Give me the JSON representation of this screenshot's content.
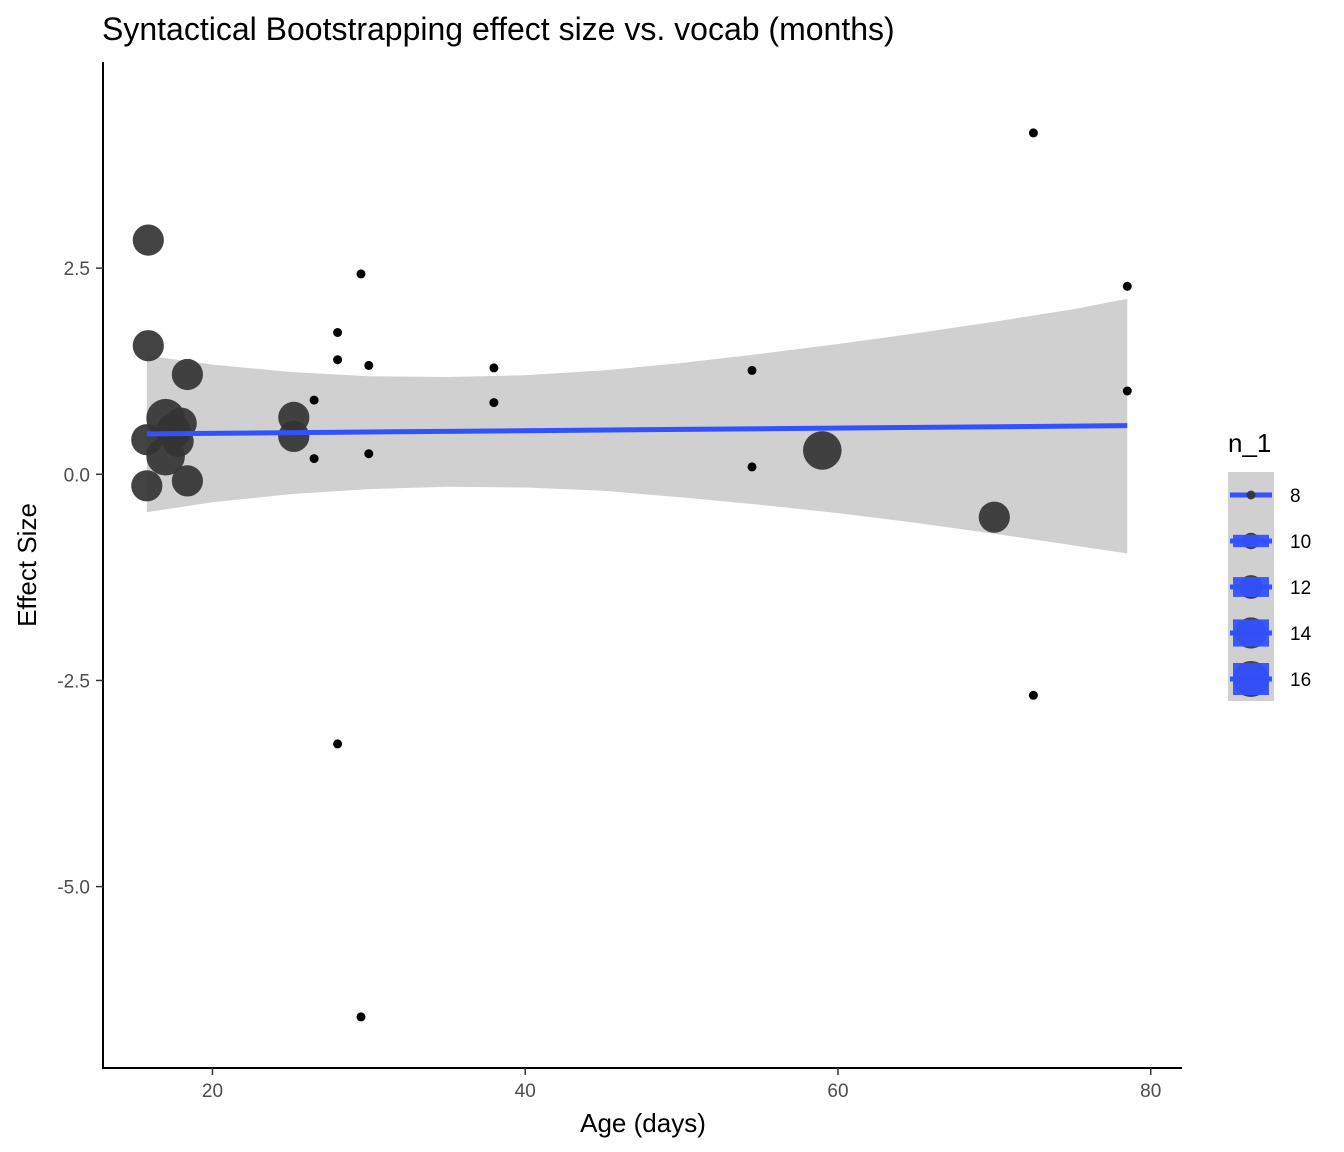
{
  "chart_data": {
    "type": "scatter",
    "title": "Syntactical Bootstrapping effect size vs. vocab (months)",
    "xlabel": "Age (days)",
    "ylabel": "Effect Size",
    "xlim": [
      13,
      82
    ],
    "ylim": [
      -7.2,
      5.0
    ],
    "x_ticks": [
      20,
      40,
      60,
      80
    ],
    "y_ticks": [
      2.5,
      0.0,
      -2.5,
      -5.0
    ],
    "x_tick_labels": [
      "20",
      "40",
      "60",
      "80"
    ],
    "y_tick_labels": [
      "2.5",
      "0.0",
      "-2.5",
      "-5.0"
    ],
    "grid": false,
    "legend": {
      "title": "n_1",
      "position": "right",
      "entries": [
        {
          "label": "8",
          "n": 8
        },
        {
          "label": "10",
          "n": 10
        },
        {
          "label": "12",
          "n": 12
        },
        {
          "label": "14",
          "n": 14
        },
        {
          "label": "16",
          "n": 16
        }
      ]
    },
    "points": [
      {
        "x": 15.9,
        "y": 2.84,
        "n": 14
      },
      {
        "x": 15.9,
        "y": 1.56,
        "n": 14
      },
      {
        "x": 15.8,
        "y": 0.42,
        "n": 14
      },
      {
        "x": 15.8,
        "y": -0.14,
        "n": 14
      },
      {
        "x": 17.0,
        "y": 0.68,
        "n": 16
      },
      {
        "x": 17.0,
        "y": 0.22,
        "n": 16
      },
      {
        "x": 17.5,
        "y": 0.52,
        "n": 15
      },
      {
        "x": 17.8,
        "y": 0.4,
        "n": 14
      },
      {
        "x": 18.0,
        "y": 0.62,
        "n": 14
      },
      {
        "x": 18.4,
        "y": 1.21,
        "n": 14
      },
      {
        "x": 18.4,
        "y": -0.08,
        "n": 14
      },
      {
        "x": 25.2,
        "y": 0.69,
        "n": 14
      },
      {
        "x": 25.2,
        "y": 0.46,
        "n": 14
      },
      {
        "x": 26.5,
        "y": 0.9,
        "n": 8
      },
      {
        "x": 26.5,
        "y": 0.19,
        "n": 8
      },
      {
        "x": 28.0,
        "y": 1.72,
        "n": 8
      },
      {
        "x": 28.0,
        "y": 1.39,
        "n": 8
      },
      {
        "x": 28.0,
        "y": -3.27,
        "n": 8
      },
      {
        "x": 29.5,
        "y": 2.43,
        "n": 8
      },
      {
        "x": 29.5,
        "y": -6.58,
        "n": 8
      },
      {
        "x": 30.0,
        "y": 1.32,
        "n": 8
      },
      {
        "x": 30.0,
        "y": 0.25,
        "n": 8
      },
      {
        "x": 38.0,
        "y": 1.29,
        "n": 8
      },
      {
        "x": 38.0,
        "y": 0.87,
        "n": 8
      },
      {
        "x": 54.5,
        "y": 1.26,
        "n": 8
      },
      {
        "x": 54.5,
        "y": 0.09,
        "n": 8
      },
      {
        "x": 59.0,
        "y": 0.29,
        "n": 16
      },
      {
        "x": 70.0,
        "y": -0.52,
        "n": 14
      },
      {
        "x": 72.5,
        "y": 4.14,
        "n": 8
      },
      {
        "x": 72.5,
        "y": -2.68,
        "n": 8
      },
      {
        "x": 78.5,
        "y": 2.28,
        "n": 8
      },
      {
        "x": 78.5,
        "y": 1.01,
        "n": 8
      }
    ],
    "trend_line": {
      "x": [
        15.8,
        78.5
      ],
      "y": [
        0.49,
        0.59
      ]
    },
    "confidence_band": {
      "x": [
        15.8,
        20,
        25,
        30,
        35,
        40,
        45,
        50,
        55,
        60,
        65,
        70,
        75,
        78.5
      ],
      "upper": [
        1.44,
        1.33,
        1.24,
        1.19,
        1.18,
        1.2,
        1.26,
        1.35,
        1.46,
        1.58,
        1.71,
        1.85,
        2.0,
        2.13
      ],
      "lower": [
        -0.46,
        -0.34,
        -0.24,
        -0.18,
        -0.15,
        -0.16,
        -0.2,
        -0.28,
        -0.37,
        -0.47,
        -0.59,
        -0.72,
        -0.86,
        -0.96
      ]
    },
    "colors": {
      "trend": "#3251ff",
      "band": "#d0d0d0",
      "point_small": "#000000",
      "point_large": "#333333"
    }
  }
}
